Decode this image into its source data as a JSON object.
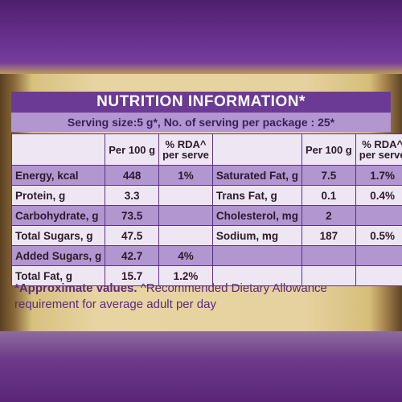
{
  "title": "NUTRITION INFORMATION*",
  "serving": "Serving size:5 g*, No. of serving per package : 25*",
  "headers": {
    "per100_left": "Per 100 g",
    "rda_left_line1": "% RDA^",
    "rda_left_line2": "per serve",
    "per100_right": "Per 100 g",
    "rda_right_line1": "% RDA^",
    "rda_right_line2": "per serve"
  },
  "left_rows": [
    {
      "label": "Energy, kcal",
      "per100": "448",
      "rda": "1%"
    },
    {
      "label": "Protein, g",
      "per100": "3.3",
      "rda": ""
    },
    {
      "label": "Carbohydrate, g",
      "per100": "73.5",
      "rda": ""
    },
    {
      "label": "Total Sugars, g",
      "per100": "47.5",
      "rda": ""
    },
    {
      "label": "Added Sugars, g",
      "per100": "42.7",
      "rda": "4%"
    },
    {
      "label": "Total Fat, g",
      "per100": "15.7",
      "rda": "1.2%"
    }
  ],
  "right_rows": [
    {
      "label": "Saturated Fat, g",
      "per100": "7.5",
      "rda": "1.7%"
    },
    {
      "label": "Trans Fat, g",
      "per100": "0.1",
      "rda": "0.4%"
    },
    {
      "label": "Cholesterol, mg",
      "per100": "2",
      "rda": ""
    },
    {
      "label": "Sodium, mg",
      "per100": "187",
      "rda": "0.5%"
    }
  ],
  "footnote": {
    "approx": "*Approximate values.",
    "rda_note": " ^Recommended Dietary Allowance",
    "line2": "requirement for average adult per day"
  },
  "colors": {
    "title_bg": "#6b3a95",
    "lilac": "#b196d0",
    "pale": "#eee6f3",
    "gold": "#e6d29e",
    "footnote_text": "#5a2a80"
  }
}
